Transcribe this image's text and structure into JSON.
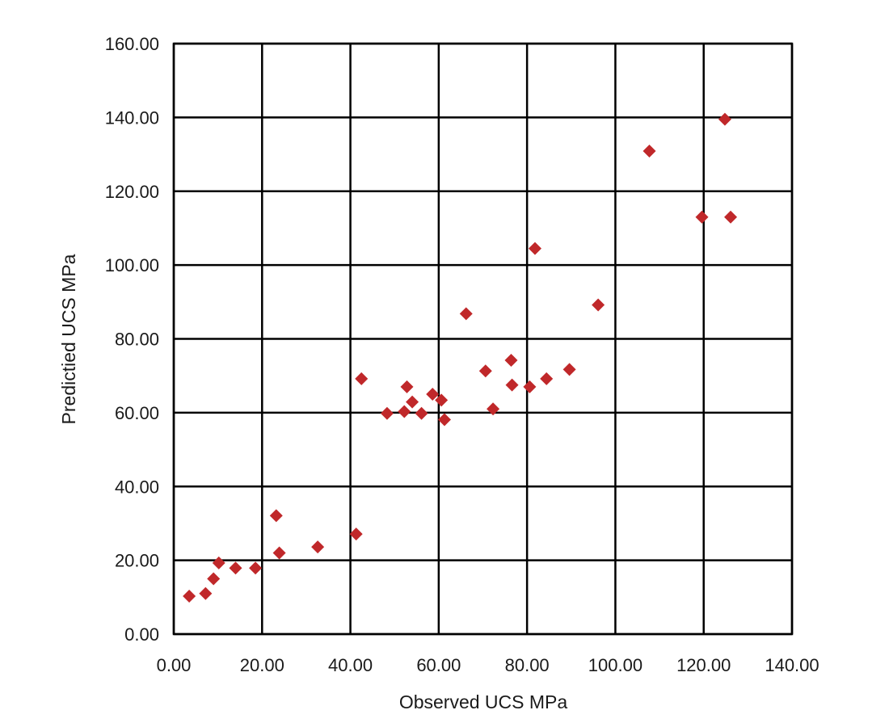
{
  "chart_data": {
    "type": "scatter",
    "title": "",
    "xlabel": "Observed UCS MPa",
    "ylabel": "Predictied UCS MPa",
    "xlim": [
      0,
      140
    ],
    "ylim": [
      0,
      160
    ],
    "x_ticks": [
      "0.00",
      "20.00",
      "40.00",
      "60.00",
      "80.00",
      "100.00",
      "120.00",
      "140.00"
    ],
    "y_ticks": [
      "0.00",
      "20.00",
      "40.00",
      "60.00",
      "80.00",
      "100.00",
      "120.00",
      "140.00",
      "160.00"
    ],
    "x_tick_values": [
      0,
      20,
      40,
      60,
      80,
      100,
      120,
      140
    ],
    "y_tick_values": [
      0,
      20,
      40,
      60,
      80,
      100,
      120,
      140,
      160
    ],
    "grid": true,
    "legend": "none",
    "marker": "diamond",
    "marker_color": "#c0282a",
    "points": [
      {
        "x": 3.5,
        "y": 10.3
      },
      {
        "x": 7.2,
        "y": 11.0
      },
      {
        "x": 9.0,
        "y": 15.0
      },
      {
        "x": 10.2,
        "y": 19.3
      },
      {
        "x": 14.0,
        "y": 17.9
      },
      {
        "x": 18.5,
        "y": 17.9
      },
      {
        "x": 23.2,
        "y": 32.1
      },
      {
        "x": 23.9,
        "y": 22.0
      },
      {
        "x": 32.6,
        "y": 23.6
      },
      {
        "x": 41.3,
        "y": 27.1
      },
      {
        "x": 42.5,
        "y": 69.2
      },
      {
        "x": 48.3,
        "y": 59.8
      },
      {
        "x": 52.2,
        "y": 60.3
      },
      {
        "x": 52.8,
        "y": 67.0
      },
      {
        "x": 54.0,
        "y": 62.9
      },
      {
        "x": 56.1,
        "y": 59.8
      },
      {
        "x": 58.6,
        "y": 65.0
      },
      {
        "x": 60.6,
        "y": 63.4
      },
      {
        "x": 61.3,
        "y": 58.1
      },
      {
        "x": 66.2,
        "y": 86.8
      },
      {
        "x": 70.6,
        "y": 71.3
      },
      {
        "x": 72.3,
        "y": 61.0
      },
      {
        "x": 76.4,
        "y": 74.2
      },
      {
        "x": 76.6,
        "y": 67.5
      },
      {
        "x": 80.6,
        "y": 67.0
      },
      {
        "x": 81.8,
        "y": 104.5
      },
      {
        "x": 84.4,
        "y": 69.2
      },
      {
        "x": 89.6,
        "y": 71.7
      },
      {
        "x": 96.1,
        "y": 89.2
      },
      {
        "x": 107.7,
        "y": 130.9
      },
      {
        "x": 119.6,
        "y": 113.0
      },
      {
        "x": 124.8,
        "y": 139.5
      },
      {
        "x": 126.1,
        "y": 113.0
      }
    ]
  }
}
